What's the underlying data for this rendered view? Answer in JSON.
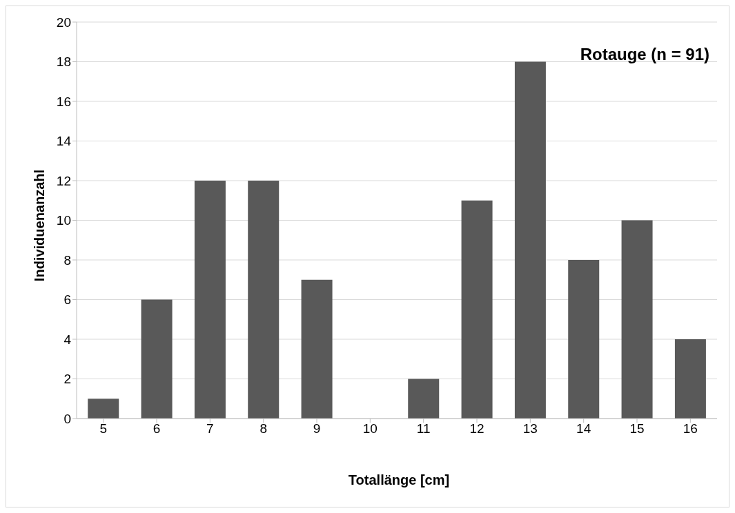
{
  "chart_data": {
    "type": "bar",
    "title": "Rotauge (n = 91)",
    "xlabel": "Totallänge [cm]",
    "ylabel": "Individuenanzahl",
    "categories": [
      "5",
      "6",
      "7",
      "8",
      "9",
      "10",
      "11",
      "12",
      "13",
      "14",
      "15",
      "16"
    ],
    "values": [
      1,
      6,
      12,
      12,
      7,
      0,
      2,
      11,
      18,
      8,
      10,
      4
    ],
    "color": "#595959",
    "ylim": [
      0,
      20
    ],
    "yticks": [
      0,
      2,
      4,
      6,
      8,
      10,
      12,
      14,
      16,
      18,
      20
    ],
    "grid": "y"
  }
}
